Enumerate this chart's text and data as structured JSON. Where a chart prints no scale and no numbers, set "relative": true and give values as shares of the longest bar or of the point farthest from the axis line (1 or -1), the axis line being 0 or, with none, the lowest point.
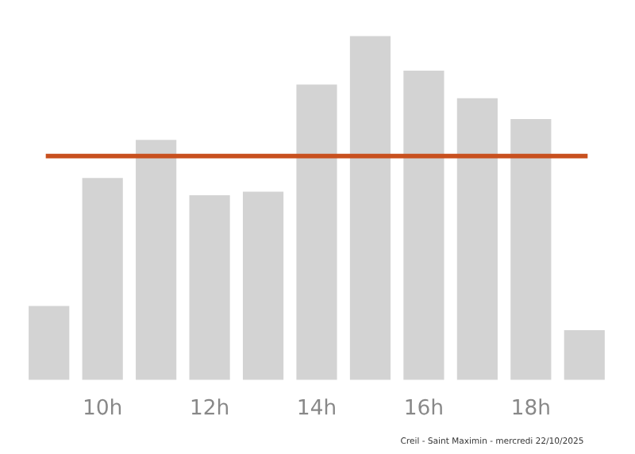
{
  "chart_data": {
    "type": "bar",
    "relative": true,
    "categories": [
      null,
      "10h",
      null,
      "12h",
      null,
      "14h",
      null,
      "16h",
      null,
      "18h",
      null
    ],
    "values": [
      0.22,
      0.59,
      0.7,
      0.54,
      0.55,
      0.86,
      1.0,
      0.9,
      0.82,
      0.76,
      0.15
    ],
    "color": "#d3d3d3",
    "ref_lines": [
      {
        "axis": "y",
        "value": 0.65,
        "color": "#c8501e",
        "line_style": "solid"
      }
    ],
    "annotations": [
      "Creil - Saint Maximin - mercredi 22/10/2025"
    ],
    "grid": false,
    "legend": false
  }
}
